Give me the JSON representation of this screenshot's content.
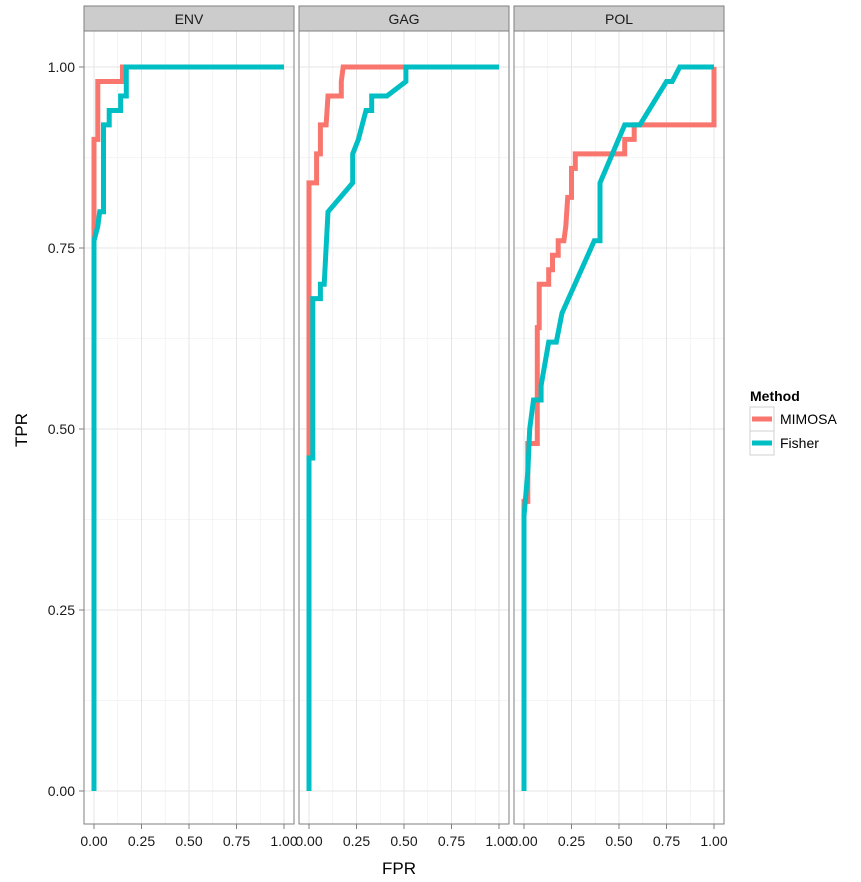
{
  "chart_data": {
    "type": "line",
    "xlabel": "FPR",
    "ylabel": "TPR",
    "xlim": [
      0,
      1
    ],
    "ylim": [
      0,
      1
    ],
    "x_ticks": [
      "0.00",
      "0.25",
      "0.50",
      "0.75",
      "1.00"
    ],
    "y_ticks": [
      "0.00",
      "0.25",
      "0.50",
      "0.75",
      "1.00"
    ],
    "grid": true,
    "legend": {
      "title": "Method",
      "placement": "right",
      "entries": [
        {
          "name": "MIMOSA",
          "color": "#F8766D"
        },
        {
          "name": "Fisher",
          "color": "#00BFC4"
        }
      ]
    },
    "panels": [
      {
        "label": "ENV",
        "series": [
          {
            "name": "MIMOSA",
            "points": [
              [
                0,
                0.76
              ],
              [
                0,
                0.9
              ],
              [
                0.02,
                0.9
              ],
              [
                0.02,
                0.98
              ],
              [
                0.15,
                0.98
              ],
              [
                0.15,
                1.0
              ],
              [
                1.0,
                1.0
              ]
            ]
          },
          {
            "name": "Fisher",
            "points": [
              [
                0,
                0
              ],
              [
                0,
                0.76
              ],
              [
                0.02,
                0.78
              ],
              [
                0.03,
                0.8
              ],
              [
                0.05,
                0.8
              ],
              [
                0.05,
                0.92
              ],
              [
                0.08,
                0.92
              ],
              [
                0.08,
                0.94
              ],
              [
                0.14,
                0.94
              ],
              [
                0.14,
                0.96
              ],
              [
                0.17,
                0.96
              ],
              [
                0.17,
                1.0
              ],
              [
                1.0,
                1.0
              ]
            ]
          }
        ]
      },
      {
        "label": "GAG",
        "series": [
          {
            "name": "MIMOSA",
            "points": [
              [
                0,
                0.46
              ],
              [
                0,
                0.84
              ],
              [
                0.04,
                0.84
              ],
              [
                0.04,
                0.88
              ],
              [
                0.06,
                0.88
              ],
              [
                0.06,
                0.92
              ],
              [
                0.09,
                0.92
              ],
              [
                0.1,
                0.96
              ],
              [
                0.17,
                0.96
              ],
              [
                0.17,
                0.98
              ],
              [
                0.18,
                1.0
              ],
              [
                1.0,
                1.0
              ]
            ]
          },
          {
            "name": "Fisher",
            "points": [
              [
                0,
                0
              ],
              [
                0,
                0.46
              ],
              [
                0.02,
                0.46
              ],
              [
                0.02,
                0.68
              ],
              [
                0.06,
                0.68
              ],
              [
                0.06,
                0.7
              ],
              [
                0.08,
                0.7
              ],
              [
                0.1,
                0.8
              ],
              [
                0.23,
                0.84
              ],
              [
                0.23,
                0.88
              ],
              [
                0.26,
                0.9
              ],
              [
                0.28,
                0.92
              ],
              [
                0.3,
                0.94
              ],
              [
                0.33,
                0.94
              ],
              [
                0.33,
                0.96
              ],
              [
                0.41,
                0.96
              ],
              [
                0.51,
                0.98
              ],
              [
                0.51,
                1.0
              ],
              [
                1.0,
                1.0
              ]
            ]
          }
        ]
      },
      {
        "label": "POL",
        "series": [
          {
            "name": "MIMOSA",
            "points": [
              [
                0,
                0.38
              ],
              [
                0,
                0.4
              ],
              [
                0.02,
                0.4
              ],
              [
                0.02,
                0.48
              ],
              [
                0.07,
                0.48
              ],
              [
                0.07,
                0.64
              ],
              [
                0.08,
                0.64
              ],
              [
                0.08,
                0.7
              ],
              [
                0.13,
                0.7
              ],
              [
                0.13,
                0.72
              ],
              [
                0.15,
                0.72
              ],
              [
                0.15,
                0.74
              ],
              [
                0.18,
                0.74
              ],
              [
                0.18,
                0.76
              ],
              [
                0.21,
                0.76
              ],
              [
                0.22,
                0.78
              ],
              [
                0.23,
                0.82
              ],
              [
                0.25,
                0.82
              ],
              [
                0.25,
                0.86
              ],
              [
                0.27,
                0.86
              ],
              [
                0.27,
                0.88
              ],
              [
                0.53,
                0.88
              ],
              [
                0.53,
                0.9
              ],
              [
                0.58,
                0.9
              ],
              [
                0.58,
                0.92
              ],
              [
                1.0,
                0.92
              ],
              [
                1.0,
                1.0
              ]
            ]
          },
          {
            "name": "Fisher",
            "points": [
              [
                0,
                0
              ],
              [
                0,
                0.38
              ],
              [
                0.02,
                0.44
              ],
              [
                0.03,
                0.5
              ],
              [
                0.05,
                0.54
              ],
              [
                0.09,
                0.54
              ],
              [
                0.09,
                0.56
              ],
              [
                0.13,
                0.62
              ],
              [
                0.17,
                0.62
              ],
              [
                0.2,
                0.66
              ],
              [
                0.37,
                0.76
              ],
              [
                0.4,
                0.76
              ],
              [
                0.4,
                0.84
              ],
              [
                0.53,
                0.92
              ],
              [
                0.61,
                0.92
              ],
              [
                0.75,
                0.98
              ],
              [
                0.78,
                0.98
              ],
              [
                0.82,
                1.0
              ],
              [
                1.0,
                1.0
              ]
            ]
          }
        ]
      }
    ]
  }
}
